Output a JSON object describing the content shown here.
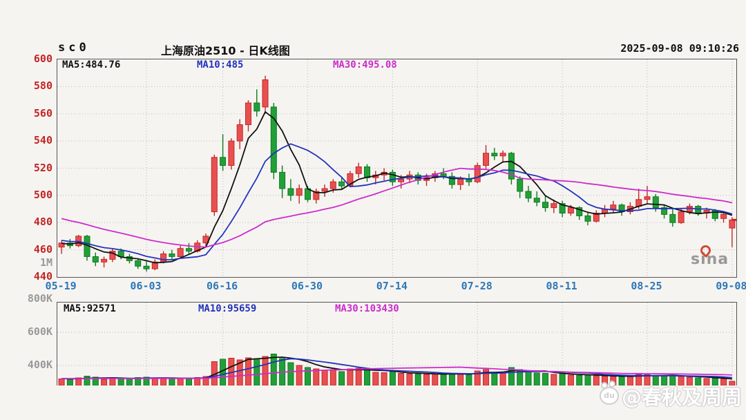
{
  "header": {
    "symbol": "sc0",
    "title": "上海原油2510 - 日K线图",
    "timestamp": "2025-09-08 09:10:26"
  },
  "price_panel": {
    "ma_labels": [
      {
        "label": "MA5:484.76"
      },
      {
        "label": "MA10:485"
      },
      {
        "label": "MA30:495.08"
      }
    ],
    "y_ticks": [
      "600",
      "580",
      "560",
      "540",
      "520",
      "500",
      "480",
      "460",
      "440"
    ],
    "unit_label": "1M"
  },
  "volume_panel": {
    "ma_labels": [
      {
        "label": "MA5:92571"
      },
      {
        "label": "MA10:95659"
      },
      {
        "label": "MA30:103430"
      }
    ],
    "y_ticks": [
      "800K",
      "600K",
      "400K"
    ]
  },
  "x_axis": {
    "tick_labels": [
      "05-19",
      "06-03",
      "06-16",
      "06-30",
      "07-14",
      "07-28",
      "08-11",
      "08-25",
      "09-08"
    ],
    "tick_indices": [
      0,
      10,
      19,
      29,
      39,
      49,
      59,
      69,
      79
    ]
  },
  "watermarks": {
    "sina": "sina",
    "credit": "@春秋及周周"
  },
  "colors": {
    "up": "#e85050",
    "up_stroke": "#c02828",
    "down": "#22a038",
    "down_stroke": "#0c7a22",
    "ma5": "#111111",
    "ma10": "#2233bb",
    "ma30": "#cc2bcc",
    "axis_price": "#c22525",
    "axis_date": "#2b78b8",
    "axis_gray": "#999999",
    "grid": "#b9b9b9",
    "border": "#555555",
    "marker": "#cc2222"
  },
  "chart_data": {
    "type": "candlestick",
    "title": "上海原油2510 日K线图 (daily K-line with volume)",
    "price_axis": {
      "min": 440,
      "max": 600,
      "step": 20
    },
    "volume_axis": {
      "tick_values": [
        800000,
        600000,
        400000
      ]
    },
    "ma_periods": [
      5,
      10,
      30
    ],
    "dates": [
      "05-19",
      "05-20",
      "05-21",
      "05-22",
      "05-23",
      "05-26",
      "05-27",
      "05-28",
      "05-29",
      "05-30",
      "06-03",
      "06-04",
      "06-05",
      "06-06",
      "06-09",
      "06-10",
      "06-11",
      "06-12",
      "06-13",
      "06-16",
      "06-17",
      "06-18",
      "06-19",
      "06-20",
      "06-23",
      "06-24",
      "06-25",
      "06-26",
      "06-27",
      "06-30",
      "07-01",
      "07-02",
      "07-03",
      "07-04",
      "07-07",
      "07-08",
      "07-09",
      "07-10",
      "07-11",
      "07-14",
      "07-15",
      "07-16",
      "07-17",
      "07-18",
      "07-21",
      "07-22",
      "07-23",
      "07-24",
      "07-25",
      "07-28",
      "07-29",
      "07-30",
      "07-31",
      "08-01",
      "08-04",
      "08-05",
      "08-06",
      "08-07",
      "08-08",
      "08-11",
      "08-12",
      "08-13",
      "08-14",
      "08-15",
      "08-18",
      "08-19",
      "08-20",
      "08-21",
      "08-22",
      "08-25",
      "08-26",
      "08-27",
      "08-28",
      "08-29",
      "09-01",
      "09-02",
      "09-03",
      "09-04",
      "09-05",
      "09-08"
    ],
    "open": [
      462,
      465,
      463,
      470,
      455,
      451,
      453,
      459,
      455,
      452,
      448,
      446,
      451,
      457,
      455,
      461,
      459,
      465,
      488,
      528,
      522,
      540,
      552,
      568,
      565,
      565,
      517,
      505,
      500,
      505,
      497,
      503,
      505,
      510,
      507,
      516,
      521,
      513,
      515,
      517,
      510,
      512,
      515,
      511,
      513,
      516,
      514,
      508,
      512,
      510,
      522,
      531,
      529,
      531,
      512,
      503,
      498,
      495,
      491,
      494,
      487,
      491,
      485,
      481,
      487,
      490,
      493,
      488,
      492,
      497,
      499,
      491,
      486,
      480,
      488,
      492,
      487,
      489,
      483,
      476
    ],
    "high": [
      467,
      468,
      471,
      471,
      458,
      455,
      461,
      461,
      457,
      453,
      452,
      453,
      459,
      460,
      463,
      465,
      467,
      472,
      530,
      545,
      542,
      556,
      570,
      578,
      588,
      568,
      522,
      512,
      508,
      507,
      505,
      508,
      512,
      513,
      518,
      524,
      523,
      518,
      520,
      519,
      515,
      518,
      517,
      516,
      518,
      520,
      517,
      514,
      516,
      524,
      537,
      535,
      533,
      532,
      514,
      507,
      503,
      500,
      497,
      496,
      493,
      492,
      488,
      489,
      493,
      496,
      494,
      495,
      505,
      507,
      501,
      493,
      490,
      490,
      494,
      493,
      491,
      490,
      488,
      484
    ],
    "low": [
      457,
      461,
      462,
      452,
      448,
      447,
      451,
      453,
      450,
      446,
      444,
      445,
      450,
      453,
      454,
      457,
      458,
      462,
      485,
      518,
      519,
      534,
      547,
      558,
      560,
      512,
      498,
      496,
      494,
      495,
      494,
      499,
      502,
      505,
      506,
      513,
      510,
      508,
      511,
      507,
      505,
      509,
      508,
      507,
      510,
      512,
      505,
      504,
      507,
      509,
      519,
      526,
      524,
      508,
      498,
      495,
      492,
      488,
      487,
      484,
      485,
      482,
      478,
      480,
      484,
      487,
      485,
      486,
      490,
      494,
      488,
      483,
      477,
      479,
      486,
      485,
      483,
      481,
      480,
      462
    ],
    "close": [
      465,
      463,
      470,
      455,
      451,
      453,
      459,
      455,
      452,
      448,
      446,
      451,
      457,
      455,
      461,
      459,
      465,
      470,
      528,
      522,
      540,
      552,
      568,
      562,
      585,
      517,
      505,
      500,
      505,
      497,
      503,
      505,
      510,
      507,
      516,
      521,
      513,
      515,
      517,
      510,
      512,
      515,
      511,
      513,
      516,
      514,
      508,
      512,
      510,
      522,
      531,
      529,
      531,
      512,
      503,
      498,
      495,
      491,
      494,
      487,
      491,
      485,
      481,
      487,
      490,
      493,
      488,
      492,
      497,
      499,
      491,
      486,
      480,
      488,
      492,
      487,
      489,
      483,
      486,
      482
    ],
    "volume": [
      95000,
      85000,
      110000,
      135000,
      120000,
      90000,
      100000,
      95000,
      105000,
      115000,
      120000,
      100000,
      110000,
      95000,
      105000,
      100000,
      115000,
      130000,
      345000,
      380000,
      395000,
      370000,
      400000,
      385000,
      420000,
      455000,
      390000,
      330000,
      290000,
      260000,
      240000,
      220000,
      230000,
      200000,
      240000,
      250000,
      220000,
      190000,
      185000,
      200000,
      175000,
      170000,
      165000,
      160000,
      170000,
      160000,
      175000,
      165000,
      155000,
      210000,
      230000,
      190000,
      180000,
      260000,
      230000,
      200000,
      180000,
      175000,
      160000,
      170000,
      150000,
      145000,
      150000,
      140000,
      135000,
      130000,
      125000,
      130000,
      160000,
      155000,
      140000,
      135000,
      145000,
      130000,
      120000,
      110000,
      100000,
      105000,
      95000,
      60000
    ],
    "ma_seed": {
      "close": [
        512,
        510,
        508,
        506,
        504,
        502,
        500,
        498,
        496,
        494,
        492,
        490,
        488,
        486,
        484,
        482,
        480,
        478,
        476,
        474,
        472,
        471,
        470,
        469,
        468,
        467,
        466,
        465,
        464,
        464
      ],
      "volume": 100000
    },
    "current_price_marker": 482
  }
}
